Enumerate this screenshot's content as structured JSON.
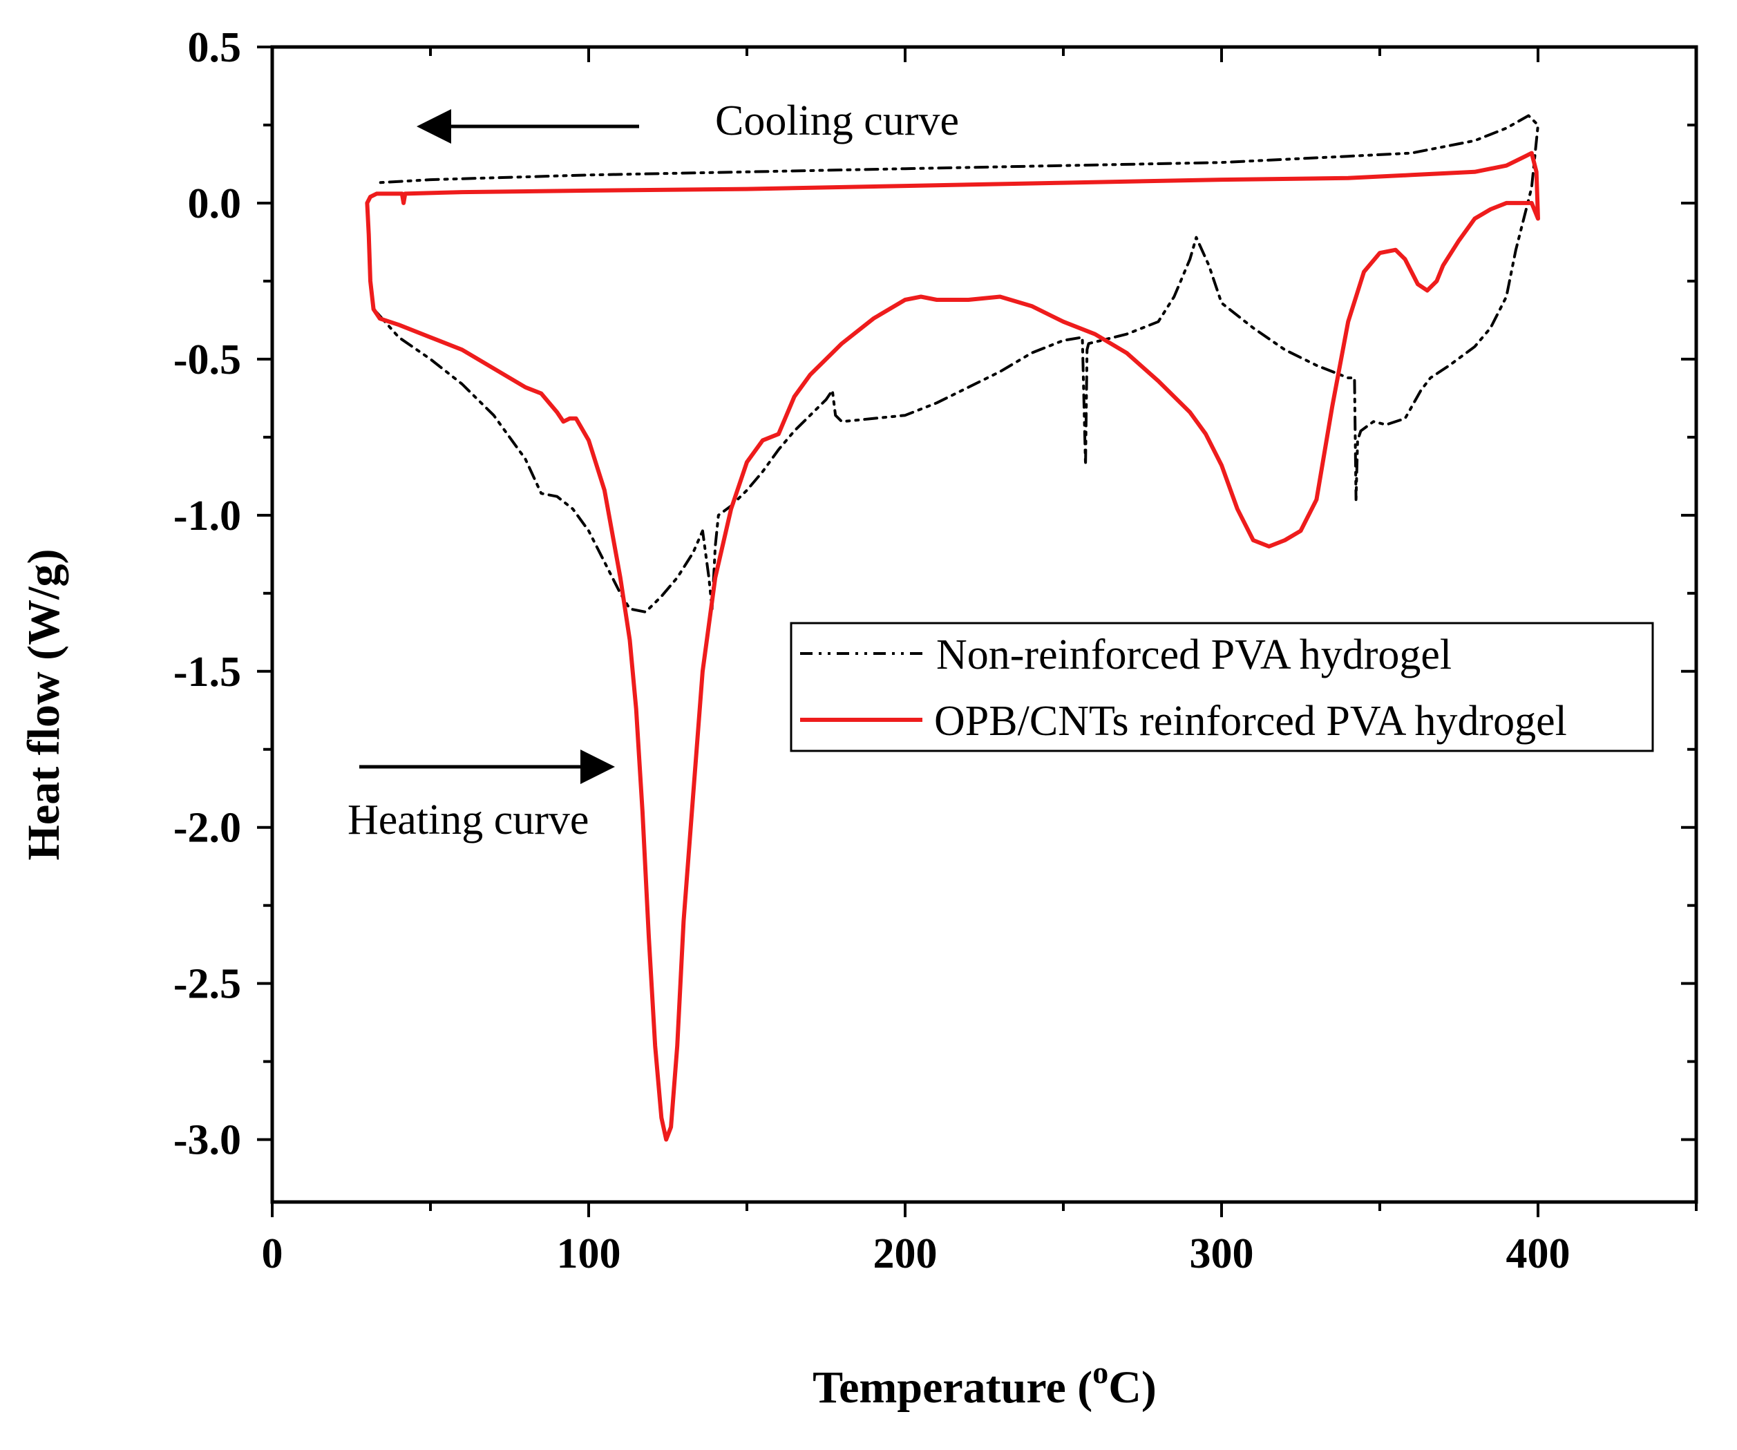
{
  "chart_data": {
    "type": "line",
    "title": "",
    "xlabel": "Temperature",
    "xlabel_unit_sup": "o",
    "xlabel_unit": "C",
    "ylabel": "Heat flow (W/g)",
    "xlim": [
      0,
      450
    ],
    "ylim": [
      -3.2,
      0.5
    ],
    "xticks": [
      0,
      100,
      200,
      300,
      400
    ],
    "xtick_labels": [
      "0",
      "100",
      "200",
      "300",
      "400"
    ],
    "yticks": [
      0.5,
      0.0,
      -0.5,
      -1.0,
      -1.5,
      -2.0,
      -2.5,
      -3.0
    ],
    "ytick_labels": [
      "0.5",
      "0.0",
      "-0.5",
      "-1.0",
      "-1.5",
      "-2.0",
      "-2.5",
      "-3.0"
    ],
    "annotations": {
      "cooling": "Cooling curve",
      "heating": "Heating curve"
    },
    "legend": {
      "placement": "center-right",
      "entries": [
        "Non-reinforced PVA hydrogel",
        "OPB/CNTs reinforced PVA hydrogel"
      ]
    },
    "series": [
      {
        "name": "Non-reinforced PVA hydrogel",
        "color": "#000000",
        "style": "dash-dot-dot",
        "x": [
          33,
          40,
          50,
          60,
          70,
          80,
          85,
          90,
          95,
          100,
          105,
          110,
          113,
          118,
          123,
          128,
          133,
          136,
          138,
          139,
          140,
          141,
          145,
          150,
          155,
          160,
          165,
          170,
          175,
          177,
          178,
          180,
          190,
          200,
          210,
          220,
          230,
          240,
          250,
          256,
          257,
          257.5,
          258,
          262,
          270,
          280,
          285,
          290,
          292,
          296,
          300,
          310,
          320,
          330,
          340,
          342,
          342.5,
          343,
          344,
          348,
          352,
          358,
          363,
          366,
          372,
          380,
          385,
          390,
          393,
          396,
          398,
          400,
          397,
          390,
          380,
          360,
          340,
          300,
          250,
          200,
          150,
          100,
          50,
          33
        ],
        "y": [
          -0.35,
          -0.43,
          -0.5,
          -0.58,
          -0.68,
          -0.82,
          -0.93,
          -0.94,
          -0.98,
          -1.05,
          -1.15,
          -1.25,
          -1.3,
          -1.31,
          -1.26,
          -1.2,
          -1.12,
          -1.05,
          -1.2,
          -1.3,
          -1.1,
          -1.0,
          -0.97,
          -0.92,
          -0.86,
          -0.79,
          -0.73,
          -0.68,
          -0.63,
          -0.6,
          -0.68,
          -0.7,
          -0.69,
          -0.68,
          -0.64,
          -0.59,
          -0.54,
          -0.48,
          -0.44,
          -0.43,
          -0.84,
          -0.47,
          -0.45,
          -0.44,
          -0.42,
          -0.38,
          -0.3,
          -0.18,
          -0.11,
          -0.2,
          -0.32,
          -0.4,
          -0.47,
          -0.52,
          -0.56,
          -0.56,
          -0.95,
          -0.76,
          -0.73,
          -0.7,
          -0.71,
          -0.69,
          -0.6,
          -0.56,
          -0.52,
          -0.46,
          -0.4,
          -0.3,
          -0.15,
          -0.03,
          0.05,
          0.25,
          0.28,
          0.24,
          0.2,
          0.16,
          0.15,
          0.13,
          0.12,
          0.11,
          0.1,
          0.09,
          0.075,
          0.065
        ]
      },
      {
        "name": "OPB/CNTs reinforced PVA hydrogel",
        "color": "#ee1c1c",
        "style": "solid",
        "x": [
          30,
          30.5,
          31,
          32,
          34,
          40,
          50,
          60,
          70,
          80,
          85,
          90,
          92,
          94,
          96,
          100,
          105,
          110,
          113,
          115,
          117,
          119,
          121,
          123,
          124.5,
          126,
          128,
          130,
          133,
          136,
          140,
          145,
          150,
          155,
          160,
          165,
          170,
          180,
          190,
          200,
          205,
          210,
          215,
          220,
          230,
          240,
          250,
          260,
          270,
          280,
          290,
          295,
          300,
          305,
          310,
          315,
          320,
          325,
          330,
          335,
          340,
          345,
          350,
          355,
          358,
          362,
          365,
          368,
          370,
          375,
          380,
          385,
          390,
          395,
          398,
          400,
          399.5,
          398,
          396,
          390,
          380,
          360,
          340,
          300,
          250,
          200,
          150,
          100,
          60,
          42,
          41.5,
          41,
          40,
          33,
          31,
          30
        ],
        "y": [
          0.0,
          -0.1,
          -0.25,
          -0.34,
          -0.37,
          -0.39,
          -0.43,
          -0.47,
          -0.53,
          -0.59,
          -0.61,
          -0.67,
          -0.7,
          -0.69,
          -0.69,
          -0.76,
          -0.92,
          -1.2,
          -1.4,
          -1.62,
          -1.95,
          -2.35,
          -2.7,
          -2.93,
          -3.0,
          -2.96,
          -2.7,
          -2.3,
          -1.9,
          -1.5,
          -1.2,
          -0.98,
          -0.83,
          -0.76,
          -0.74,
          -0.62,
          -0.55,
          -0.45,
          -0.37,
          -0.31,
          -0.3,
          -0.31,
          -0.31,
          -0.31,
          -0.3,
          -0.33,
          -0.38,
          -0.42,
          -0.48,
          -0.57,
          -0.67,
          -0.74,
          -0.84,
          -0.98,
          -1.08,
          -1.1,
          -1.08,
          -1.05,
          -0.95,
          -0.65,
          -0.38,
          -0.22,
          -0.16,
          -0.15,
          -0.18,
          -0.26,
          -0.28,
          -0.25,
          -0.2,
          -0.12,
          -0.05,
          -0.02,
          0.0,
          0.0,
          0.0,
          -0.05,
          0.1,
          0.16,
          0.15,
          0.12,
          0.1,
          0.09,
          0.08,
          0.075,
          0.065,
          0.055,
          0.045,
          0.04,
          0.035,
          0.03,
          0.0,
          0.03,
          0.03,
          0.03,
          0.02,
          0.0
        ]
      }
    ]
  }
}
